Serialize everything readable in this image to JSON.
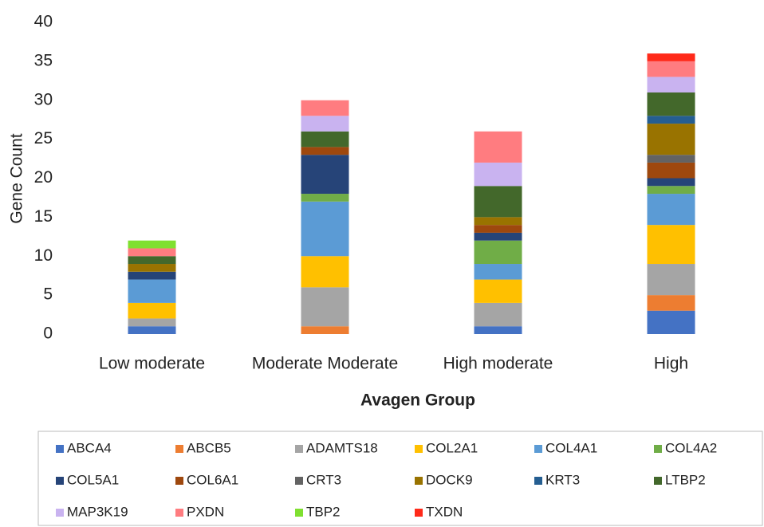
{
  "chart_data": {
    "type": "stacked_bar",
    "x_label": "Avagen Group",
    "y_label": "Gene Count",
    "categories": [
      "Low moderate",
      "Moderate Moderate",
      "High moderate",
      "High"
    ],
    "ylim": [
      0,
      40
    ],
    "yticks": [
      0,
      5,
      10,
      15,
      20,
      25,
      30,
      35,
      40
    ],
    "grid": false,
    "legend": "bottom",
    "series": [
      {
        "name": "ABCA4",
        "color": "#4472c4",
        "values": [
          1,
          0,
          1,
          3
        ]
      },
      {
        "name": "ABCB5",
        "color": "#ed7d31",
        "values": [
          0,
          1,
          0,
          2
        ]
      },
      {
        "name": "ADAMTS18",
        "color": "#a5a5a5",
        "values": [
          1,
          5,
          3,
          4
        ]
      },
      {
        "name": "COL2A1",
        "color": "#ffc000",
        "values": [
          2,
          4,
          3,
          5
        ]
      },
      {
        "name": "COL4A1",
        "color": "#5b9bd5",
        "values": [
          3,
          7,
          2,
          4
        ]
      },
      {
        "name": "COL4A2",
        "color": "#70ad47",
        "values": [
          0,
          1,
          3,
          1
        ]
      },
      {
        "name": "COL5A1",
        "color": "#264478",
        "values": [
          1,
          5,
          1,
          1
        ]
      },
      {
        "name": "COL6A1",
        "color": "#9e480e",
        "values": [
          0,
          1,
          1,
          2
        ]
      },
      {
        "name": "CRT3",
        "color": "#636363",
        "values": [
          0,
          0,
          0,
          1
        ]
      },
      {
        "name": "DOCK9",
        "color": "#997300",
        "values": [
          1,
          0,
          1,
          4
        ]
      },
      {
        "name": "KRT3",
        "color": "#255e91",
        "values": [
          0,
          0,
          0,
          1
        ]
      },
      {
        "name": "LTBP2",
        "color": "#43682b",
        "values": [
          1,
          2,
          4,
          3
        ]
      },
      {
        "name": "MAP3K19",
        "color": "#c9b3f0",
        "values": [
          0,
          2,
          3,
          2
        ]
      },
      {
        "name": "PXDN",
        "color": "#ff7c80",
        "values": [
          1,
          2,
          4,
          2
        ]
      },
      {
        "name": "TBP2",
        "color": "#7fe030",
        "values": [
          1,
          0,
          0,
          0
        ]
      },
      {
        "name": "TXDN",
        "color": "#ff2a1a",
        "values": [
          0,
          0,
          0,
          1
        ]
      }
    ]
  }
}
